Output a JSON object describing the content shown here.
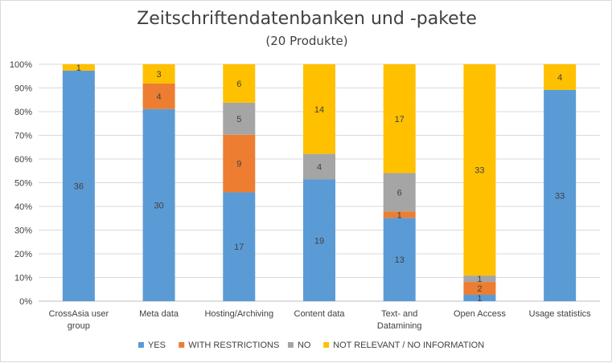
{
  "chart_data": {
    "type": "bar",
    "stacked": "percent",
    "title": "Zeitschriftendatenbanken und -pakete",
    "subtitle": "(20 Produkte)",
    "xlabel": "",
    "ylabel": "",
    "ylim": [
      0,
      100
    ],
    "y_ticks": [
      "0%",
      "10%",
      "20%",
      "30%",
      "40%",
      "50%",
      "60%",
      "70%",
      "80%",
      "90%",
      "100%"
    ],
    "grid": true,
    "legend_position": "bottom",
    "categories": [
      [
        "CrossAsia user",
        "group"
      ],
      [
        "Meta data"
      ],
      [
        "Hosting/Archiving"
      ],
      [
        "Content data"
      ],
      [
        "Text- and",
        "Datamining"
      ],
      [
        "Open Access"
      ],
      [
        "Usage statistics"
      ]
    ],
    "series": [
      {
        "name": "YES",
        "color": "#5b9bd5",
        "values": [
          36,
          30,
          17,
          19,
          13,
          1,
          33
        ]
      },
      {
        "name": "WITH RESTRICTIONS",
        "color": "#ed7d31",
        "values": [
          null,
          4,
          9,
          null,
          1,
          2,
          null
        ]
      },
      {
        "name": "NO",
        "color": "#a5a5a5",
        "values": [
          null,
          null,
          5,
          4,
          6,
          1,
          null
        ]
      },
      {
        "name": "NOT RELEVANT / NO INFORMATION",
        "color": "#ffc000",
        "values": [
          1,
          3,
          6,
          14,
          17,
          33,
          4
        ]
      }
    ]
  }
}
